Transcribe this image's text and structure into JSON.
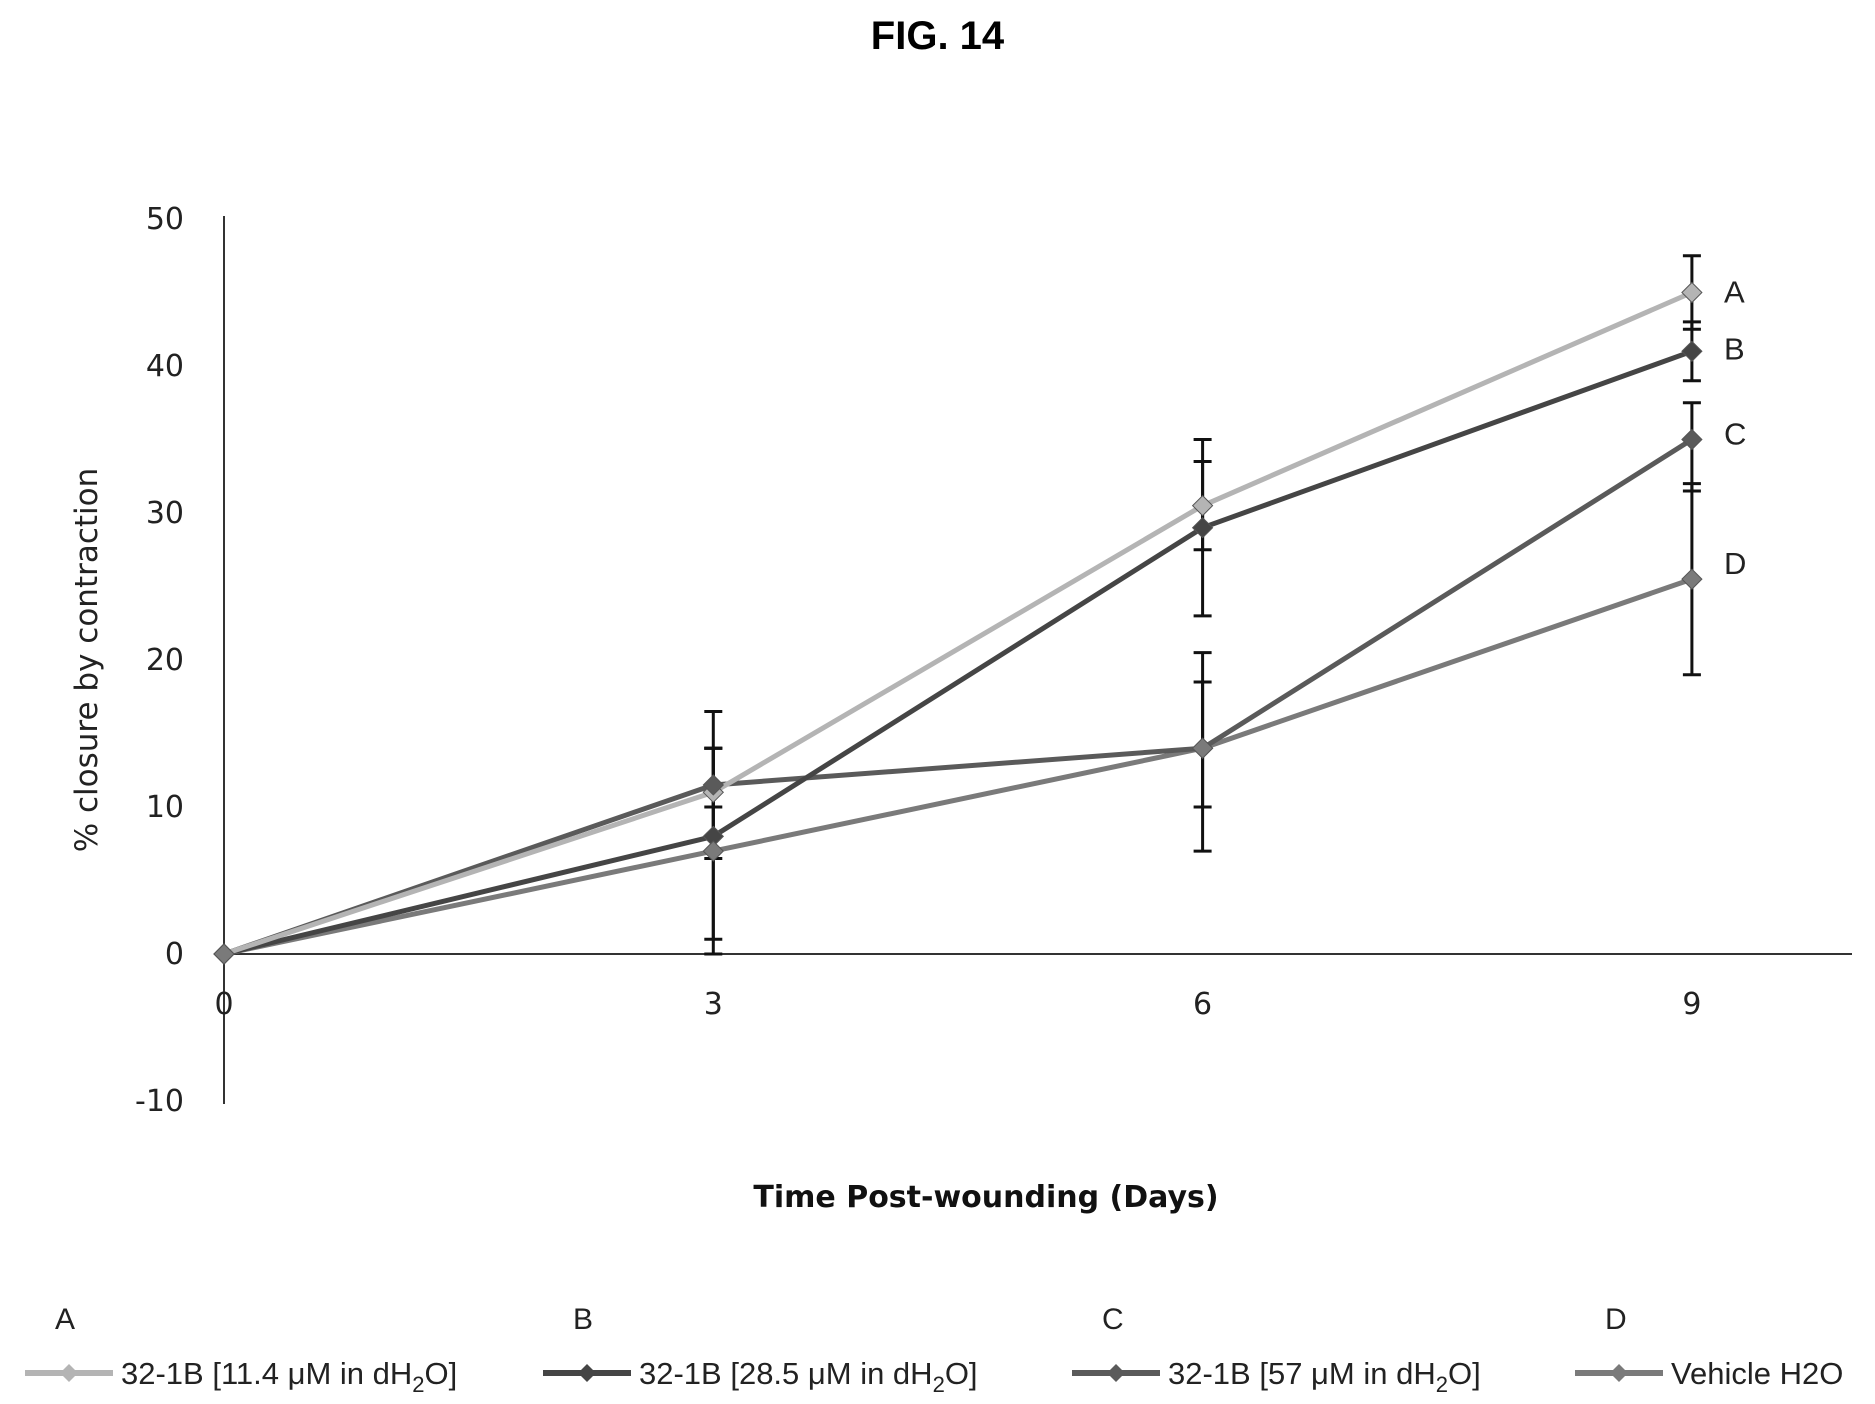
{
  "figure_title": "FIG. 14",
  "chart_data": {
    "type": "line",
    "x": [
      0,
      3,
      6,
      9
    ],
    "xlabel": "Time Post-wounding (Days)",
    "ylabel": "% closure by contraction",
    "ylim": [
      -10,
      50
    ],
    "x_ticks": [
      "0",
      "3",
      "6",
      "9"
    ],
    "y_ticks": [
      "-10",
      "0",
      "10",
      "20",
      "30",
      "40",
      "50"
    ],
    "grid": false,
    "legend_position": "bottom",
    "series": [
      {
        "letter": "A",
        "label_prefix": "32-1B [11.4 μM in dH",
        "label_sub": "2",
        "label_suffix": "O]",
        "color": "#b4b4b4",
        "values": [
          0,
          11,
          30.5,
          45
        ],
        "err_low": [
          0,
          10,
          27.5,
          42.5
        ],
        "err_high": [
          0,
          14,
          33.5,
          47.5
        ]
      },
      {
        "letter": "B",
        "label_prefix": "32-1B [28.5 μM in dH",
        "label_sub": "2",
        "label_suffix": "O]",
        "color": "#454545",
        "values": [
          0,
          8,
          29,
          41
        ],
        "err_low": [
          0,
          1,
          23,
          39
        ],
        "err_high": [
          0,
          14,
          35,
          43
        ]
      },
      {
        "letter": "C",
        "label_prefix": "32-1B [57 μM in dH",
        "label_sub": "2",
        "label_suffix": "O]",
        "color": "#5a5a5a",
        "values": [
          0,
          11.5,
          14,
          35
        ],
        "err_low": [
          0,
          6.5,
          10,
          31.5
        ],
        "err_high": [
          0,
          16.5,
          18.5,
          37.5
        ]
      },
      {
        "letter": "D",
        "label_prefix": "Vehicle H2O",
        "label_sub": "",
        "label_suffix": "",
        "color": "#7a7a7a",
        "values": [
          0,
          7,
          14,
          25.5
        ],
        "err_low": [
          0,
          0,
          7,
          19
        ],
        "err_high": [
          0,
          14,
          20.5,
          32
        ]
      }
    ]
  }
}
